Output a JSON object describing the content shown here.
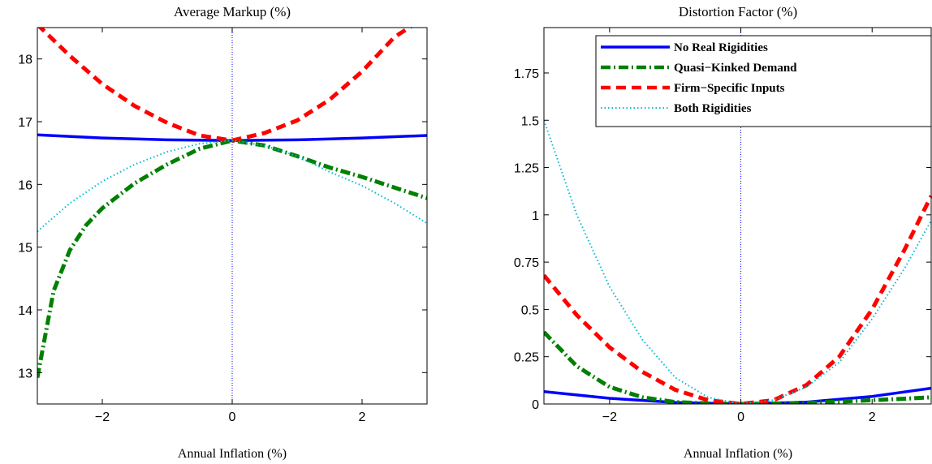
{
  "chart_data": [
    {
      "type": "line",
      "title": "Average Markup (%)",
      "xlabel": "Annual Inflation (%)",
      "ylabel": "",
      "xlim": [
        -3,
        3
      ],
      "ylim": [
        12.5,
        18.5
      ],
      "xticks": [
        -2,
        0,
        2
      ],
      "yticks": [
        13,
        14,
        15,
        16,
        17,
        18
      ],
      "x_tick_labels": [
        "−2",
        "0",
        "2"
      ],
      "y_tick_labels": [
        "13",
        "14",
        "15",
        "16",
        "17",
        "18"
      ],
      "reference_line": {
        "x": 0,
        "style": "dotted",
        "color": "#0000ff"
      },
      "grid": false,
      "legend": null,
      "series": [
        {
          "key": "no_real",
          "color": "#0000ff",
          "style": "solid",
          "x": [
            -3,
            -2,
            -1,
            0,
            1,
            2,
            3
          ],
          "y": [
            16.79,
            16.74,
            16.71,
            16.7,
            16.71,
            16.74,
            16.78
          ]
        },
        {
          "key": "quasi",
          "color": "#008000",
          "style": "dashdot",
          "x": [
            -3,
            -2.75,
            -2.5,
            -2.25,
            -2,
            -1.5,
            -1,
            -0.5,
            0,
            0.5,
            1,
            1.5,
            2,
            2.5,
            3
          ],
          "y": [
            12.92,
            14.3,
            14.95,
            15.35,
            15.62,
            16.02,
            16.32,
            16.57,
            16.7,
            16.62,
            16.45,
            16.27,
            16.12,
            15.95,
            15.78
          ]
        },
        {
          "key": "firm",
          "color": "#ff0000",
          "style": "dashed",
          "x": [
            -3,
            -2.5,
            -2,
            -1.5,
            -1,
            -0.5,
            0,
            0.5,
            1,
            1.5,
            2,
            2.5,
            2.8
          ],
          "y": [
            18.55,
            18.05,
            17.6,
            17.25,
            16.98,
            16.78,
            16.7,
            16.82,
            17.02,
            17.35,
            17.8,
            18.35,
            18.55
          ]
        },
        {
          "key": "both",
          "color": "#00bcd4",
          "style": "dotted",
          "x": [
            -3,
            -2.5,
            -2,
            -1.5,
            -1,
            -0.5,
            0,
            0.5,
            1,
            1.5,
            2,
            2.5,
            3
          ],
          "y": [
            15.25,
            15.7,
            16.05,
            16.32,
            16.52,
            16.65,
            16.7,
            16.62,
            16.45,
            16.2,
            15.98,
            15.7,
            15.38
          ]
        }
      ]
    },
    {
      "type": "line",
      "title": "Distortion Factor (%)",
      "xlabel": "Annual Inflation (%)",
      "ylabel": "",
      "xlim": [
        -3,
        2.9
      ],
      "ylim": [
        0,
        1.99
      ],
      "xticks": [
        -2,
        0,
        2
      ],
      "yticks": [
        0,
        0.25,
        0.5,
        0.75,
        1,
        1.25,
        1.5,
        1.75
      ],
      "x_tick_labels": [
        "−2",
        "0",
        "2"
      ],
      "y_tick_labels": [
        "0",
        "0.25",
        "0.5",
        "0.75",
        "1",
        "1.25",
        "1.5",
        "1.75"
      ],
      "reference_line": {
        "x": 0,
        "style": "dotted",
        "color": "#0000ff"
      },
      "grid": false,
      "legend": {
        "placement": "top-right",
        "entries": [
          {
            "key": "no_real",
            "label": "No Real Rigidities"
          },
          {
            "key": "quasi",
            "label": "Quasi−Kinked Demand"
          },
          {
            "key": "firm",
            "label": "Firm−Specific Inputs"
          },
          {
            "key": "both",
            "label": "Both Rigidities"
          }
        ]
      },
      "series": [
        {
          "key": "no_real",
          "color": "#0000ff",
          "style": "solid",
          "x": [
            -3,
            -2,
            -1,
            0,
            1,
            2,
            2.9
          ],
          "y": [
            0.065,
            0.03,
            0.008,
            0,
            0.01,
            0.04,
            0.083
          ]
        },
        {
          "key": "quasi",
          "color": "#008000",
          "style": "dashdot",
          "x": [
            -3,
            -2.5,
            -2,
            -1.5,
            -1,
            -0.5,
            0,
            0.5,
            1,
            1.5,
            2,
            2.5,
            2.9
          ],
          "y": [
            0.38,
            0.2,
            0.09,
            0.035,
            0.01,
            0.003,
            0,
            0.002,
            0.006,
            0.012,
            0.02,
            0.028,
            0.035
          ]
        },
        {
          "key": "firm",
          "color": "#ff0000",
          "style": "dashed",
          "x": [
            -3,
            -2.5,
            -2,
            -1.5,
            -1,
            -0.5,
            0,
            0.5,
            1,
            1.5,
            2,
            2.5,
            2.9
          ],
          "y": [
            0.68,
            0.47,
            0.3,
            0.17,
            0.075,
            0.02,
            0,
            0.02,
            0.1,
            0.25,
            0.5,
            0.82,
            1.1
          ]
        },
        {
          "key": "both",
          "color": "#00bcd4",
          "style": "dotted",
          "x": [
            -3,
            -2.5,
            -2,
            -1.5,
            -1,
            -0.5,
            0,
            0.5,
            1,
            1.5,
            2,
            2.5,
            2.9
          ],
          "y": [
            1.5,
            1.0,
            0.62,
            0.34,
            0.14,
            0.035,
            0,
            0.02,
            0.09,
            0.22,
            0.45,
            0.72,
            0.97
          ]
        }
      ]
    }
  ]
}
